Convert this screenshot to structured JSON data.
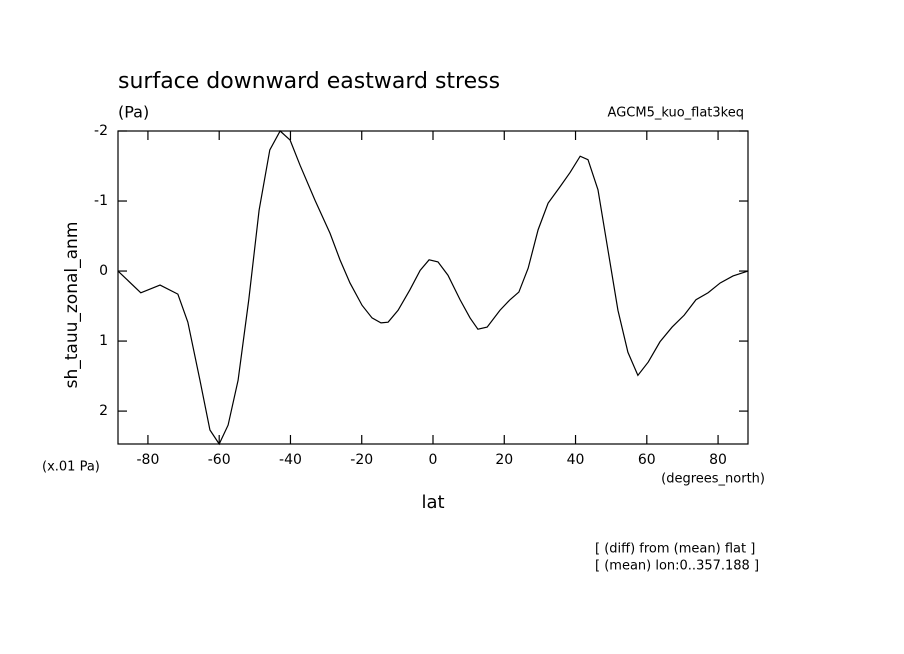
{
  "chart_data": {
    "type": "line",
    "title": "surface downward eastward stress",
    "units": "(Pa)",
    "subtitle": "AGCM5_kuo_flat3keq",
    "y_label": "sh_tauu_zonal_anm",
    "y_scale_note": "(x.01 Pa)",
    "x_label": "lat",
    "x_units": "(degrees_north)",
    "annotations": [
      "[ (diff) from (mean) flat ]",
      "[ (mean) lon:0..357.188 ]"
    ],
    "x": [
      -88.4,
      -82,
      -76.6,
      -71.6,
      -68.8,
      -65.4,
      -62.6,
      -60,
      -57.5,
      -54.7,
      -51.7,
      -48.8,
      -45.8,
      -42.9,
      -40.1,
      -37.3,
      -33.1,
      -28.9,
      -26.1,
      -23.3,
      -19.9,
      -17.1,
      -14.6,
      -12.6,
      -9.8,
      -6.5,
      -3.6,
      -1.1,
      1.4,
      4.2,
      7.6,
      10.4,
      12.6,
      15.2,
      18.8,
      21.6,
      24.1,
      26.7,
      29.5,
      32.3,
      35.6,
      38.5,
      41.3,
      43.5,
      46.3,
      49.1,
      51.9,
      54.7,
      57.5,
      60.4,
      63.7,
      67.1,
      70.5,
      73.8,
      77.2,
      80.6,
      84.2,
      88.4
    ],
    "series": [
      {
        "color": "#000000",
        "values": [
          0,
          0.31,
          0.2,
          0.33,
          0.73,
          1.56,
          2.27,
          2.47,
          2.2,
          1.56,
          0.41,
          -0.87,
          -1.73,
          -2.0,
          -1.87,
          -1.51,
          -1.01,
          -0.54,
          -0.16,
          0.17,
          0.49,
          0.67,
          0.74,
          0.73,
          0.56,
          0.27,
          -0.01,
          -0.16,
          -0.13,
          0.06,
          0.41,
          0.67,
          0.83,
          0.8,
          0.56,
          0.41,
          0.3,
          -0.04,
          -0.59,
          -0.97,
          -1.2,
          -1.41,
          -1.64,
          -1.59,
          -1.16,
          -0.3,
          0.56,
          1.16,
          1.49,
          1.3,
          1.01,
          0.8,
          0.63,
          0.41,
          0.31,
          0.17,
          0.07,
          0
        ]
      }
    ],
    "xlim": [
      -88.4,
      88.4
    ],
    "xticks": [
      -80,
      -60,
      -40,
      -20,
      0,
      20,
      40,
      60,
      80
    ],
    "ylim": [
      -2,
      2.47
    ],
    "yticks": [
      -2,
      -1,
      0,
      1,
      2
    ],
    "y_inverted": true,
    "grid": false
  }
}
